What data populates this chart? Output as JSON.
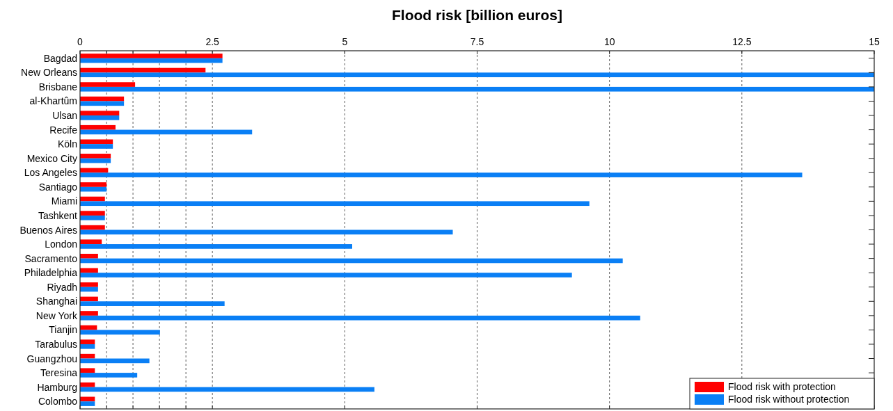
{
  "chart_data": {
    "type": "bar",
    "title": "Flood risk [billion euros]",
    "orientation": "horizontal",
    "categories": [
      "Bagdad",
      "New Orleans",
      "Brisbane",
      "al-Khartûm",
      "Ulsan",
      "Recife",
      "Köln",
      "Mexico City",
      "Los Angeles",
      "Santiago",
      "Miami",
      "Tashkent",
      "Buenos Aires",
      "London",
      "Sacramento",
      "Philadelphia",
      "Riyadh",
      "Shanghai",
      "New York",
      "Tianjin",
      "Tarabulus",
      "Guangzhou",
      "Teresina",
      "Hamburg",
      "Colombo"
    ],
    "series": [
      {
        "name": "Flood risk with protection",
        "color": "#ff0000",
        "values": [
          2.69,
          2.37,
          1.04,
          0.83,
          0.74,
          0.67,
          0.62,
          0.58,
          0.53,
          0.5,
          0.47,
          0.47,
          0.47,
          0.41,
          0.34,
          0.34,
          0.34,
          0.34,
          0.34,
          0.32,
          0.28,
          0.28,
          0.28,
          0.28,
          0.28
        ]
      },
      {
        "name": "Flood risk without protection",
        "color": "#0a7ff5",
        "values": [
          2.69,
          15,
          15,
          0.83,
          0.74,
          3.25,
          0.62,
          0.58,
          13.64,
          0.5,
          9.62,
          0.47,
          7.04,
          5.14,
          10.25,
          9.29,
          0.34,
          2.73,
          10.58,
          1.51,
          0.28,
          1.31,
          1.08,
          5.56,
          0.28
        ]
      }
    ],
    "xlim": [
      0,
      15
    ],
    "xticks": [
      0,
      {
        "value": 0.5,
        "label": null
      },
      {
        "value": 1,
        "label": null
      },
      {
        "value": 1.5,
        "label": null
      },
      {
        "value": 2,
        "label": null
      },
      2.5,
      5,
      7.5,
      10,
      12.5,
      15
    ],
    "grid": "x",
    "legend": "bottom right"
  }
}
